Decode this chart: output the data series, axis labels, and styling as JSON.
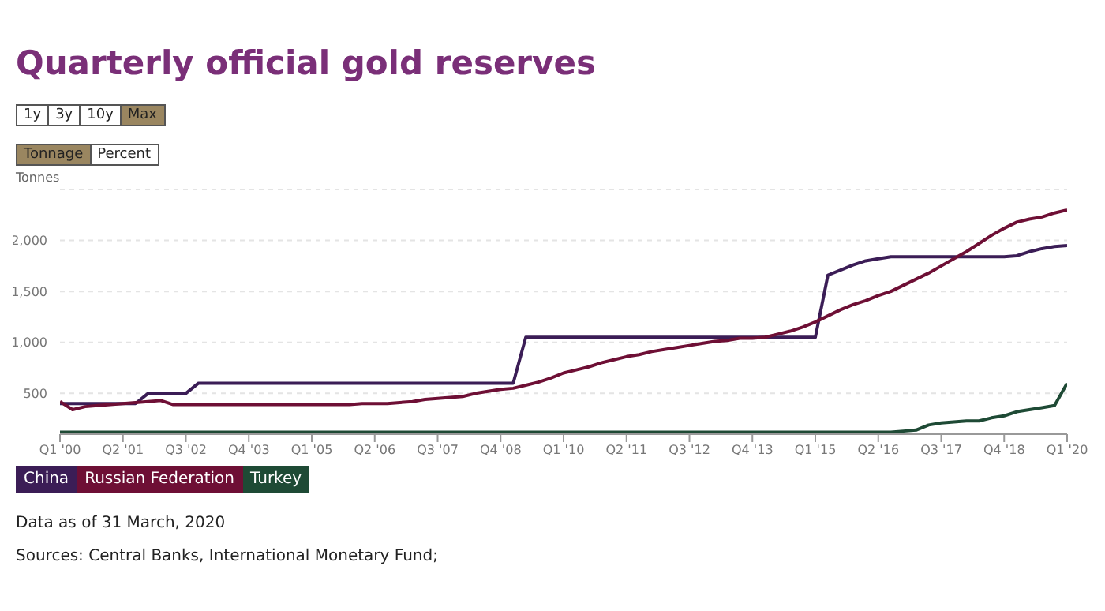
{
  "chart_data": {
    "type": "line",
    "title": "Quarterly official gold reserves",
    "ylabel": "Tonnes",
    "annotations": [
      "1y",
      "3y",
      "10y",
      "Max",
      "Tonnage",
      "Percent",
      "Data as of 31 March, 2020",
      "Sources: Central Banks, International Monetary Fund;"
    ],
    "categories": [
      "Q1 '00",
      null,
      null,
      null,
      null,
      "Q2 '01",
      null,
      null,
      null,
      null,
      "Q3 '02",
      null,
      null,
      null,
      null,
      "Q4 '03",
      null,
      null,
      null,
      null,
      "Q1 '05",
      null,
      null,
      null,
      null,
      "Q2 '06",
      null,
      null,
      null,
      null,
      "Q3 '07",
      null,
      null,
      null,
      null,
      "Q4 '08",
      null,
      null,
      null,
      null,
      "Q1 '10",
      null,
      null,
      null,
      null,
      "Q2 '11",
      null,
      null,
      null,
      null,
      "Q3 '12",
      null,
      null,
      null,
      null,
      "Q4 '13",
      null,
      null,
      null,
      null,
      "Q1 '15",
      null,
      null,
      null,
      null,
      "Q2 '16",
      null,
      null,
      null,
      null,
      "Q3 '17",
      null,
      null,
      null,
      null,
      "Q4 '18",
      null,
      null,
      null,
      null,
      "Q1 '20"
    ],
    "series": [
      {
        "name": "China",
        "color": "#3b1d56",
        "values": [
          400,
          400,
          400,
          400,
          400,
          400,
          400,
          500,
          500,
          500,
          500,
          600,
          600,
          600,
          600,
          600,
          600,
          600,
          600,
          600,
          600,
          600,
          600,
          600,
          600,
          600,
          600,
          600,
          600,
          600,
          600,
          600,
          600,
          600,
          600,
          600,
          600,
          1050,
          1050,
          1050,
          1050,
          1050,
          1050,
          1050,
          1050,
          1050,
          1050,
          1050,
          1050,
          1050,
          1050,
          1050,
          1050,
          1050,
          1050,
          1050,
          1050,
          1050,
          1050,
          1050,
          1050,
          1660,
          1710,
          1760,
          1800,
          1820,
          1840,
          1840,
          1840,
          1840,
          1840,
          1840,
          1840,
          1840,
          1840,
          1840,
          1850,
          1890,
          1920,
          1940,
          1950
        ]
      },
      {
        "name": "Russian Federation",
        "color": "#6e0f35",
        "values": [
          420,
          340,
          370,
          380,
          390,
          400,
          410,
          420,
          430,
          390,
          390,
          390,
          390,
          390,
          390,
          390,
          390,
          390,
          390,
          390,
          390,
          390,
          390,
          390,
          400,
          400,
          400,
          410,
          420,
          440,
          450,
          460,
          470,
          500,
          520,
          540,
          550,
          580,
          610,
          650,
          700,
          730,
          760,
          800,
          830,
          860,
          880,
          910,
          930,
          950,
          970,
          990,
          1010,
          1020,
          1040,
          1040,
          1050,
          1080,
          1110,
          1150,
          1200,
          1260,
          1320,
          1370,
          1410,
          1460,
          1500,
          1560,
          1620,
          1680,
          1750,
          1820,
          1890,
          1970,
          2050,
          2120,
          2180,
          2210,
          2230,
          2270,
          2300
        ]
      },
      {
        "name": "Turkey",
        "color": "#1e4a35",
        "values": [
          120,
          120,
          120,
          120,
          120,
          120,
          120,
          120,
          120,
          120,
          120,
          120,
          120,
          120,
          120,
          120,
          120,
          120,
          120,
          120,
          120,
          120,
          120,
          120,
          120,
          120,
          120,
          120,
          120,
          120,
          120,
          120,
          120,
          120,
          120,
          120,
          120,
          120,
          120,
          120,
          120,
          120,
          120,
          120,
          120,
          120,
          120,
          120,
          120,
          120,
          120,
          120,
          120,
          120,
          120,
          120,
          120,
          120,
          120,
          120,
          120,
          120,
          120,
          120,
          120,
          120,
          120,
          130,
          140,
          190,
          210,
          220,
          230,
          230,
          260,
          280,
          320,
          340,
          360,
          380,
          600
        ]
      }
    ],
    "ylim": [
      100,
      2500
    ],
    "yticks": [
      500,
      {
        "value": 1000,
        "label": "1,000"
      },
      {
        "value": 1500,
        "label": "1,500"
      },
      {
        "value": 2000,
        "label": "2,000"
      },
      {
        "value": 2500,
        "label": null
      }
    ],
    "grid": "y",
    "legend": "bottom left",
    "marker": "none",
    "line_style": "solid"
  }
}
